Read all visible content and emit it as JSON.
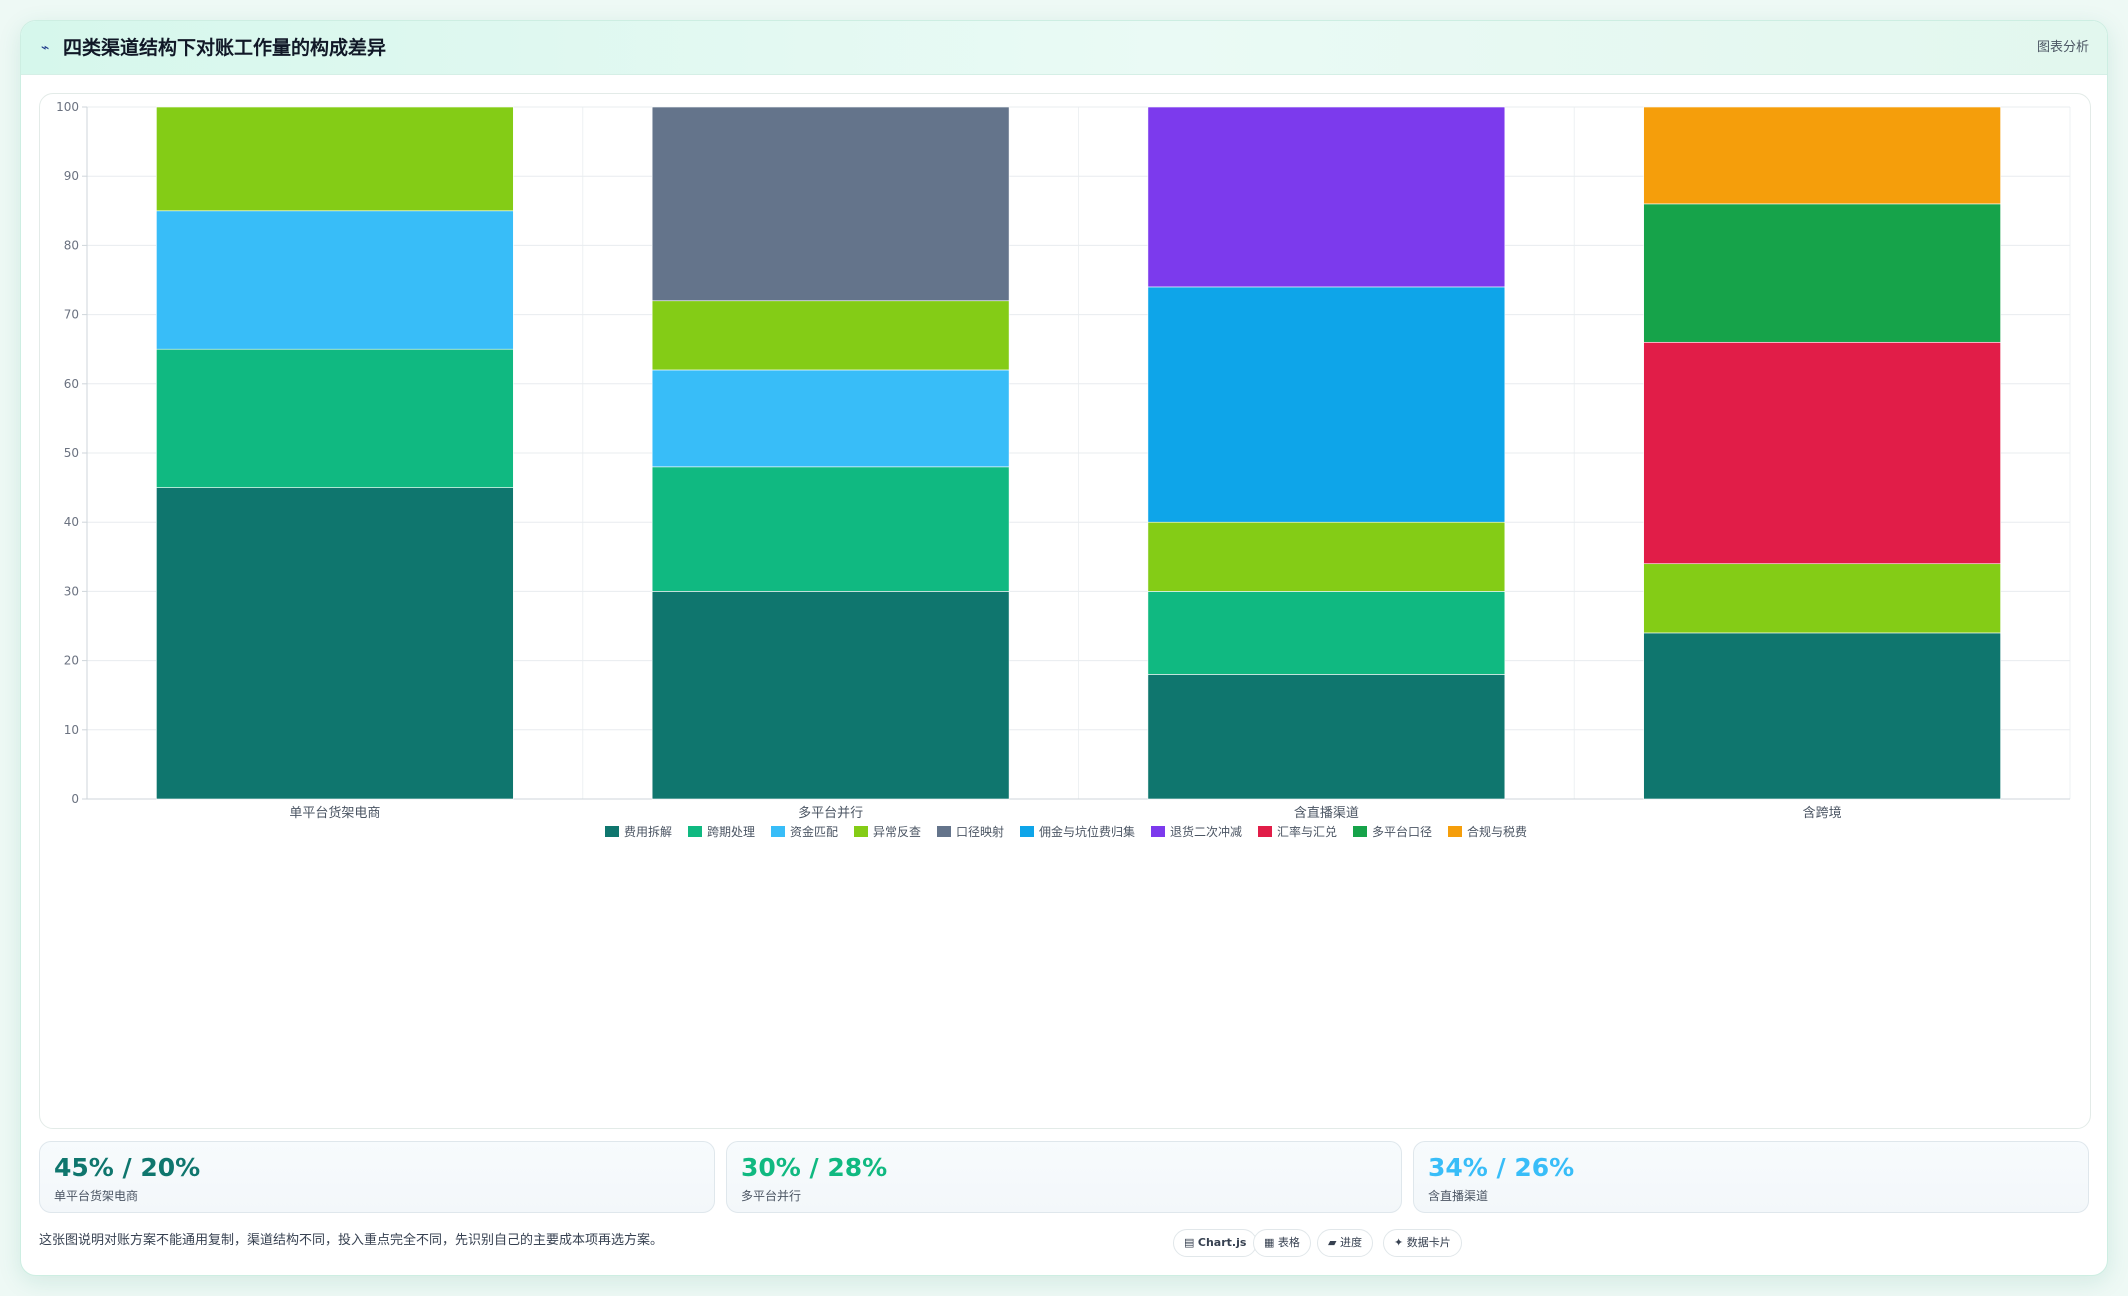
{
  "header": {
    "title": "四类渠道结构下对账工作量的构成差异",
    "icon": "trend-line-icon",
    "tag": "图表分析"
  },
  "chart_data": {
    "type": "bar",
    "stacked": true,
    "title": "",
    "xlabel": "",
    "ylabel": "",
    "ylim": [
      0,
      100
    ],
    "yticks": [
      0,
      10,
      20,
      30,
      40,
      50,
      60,
      70,
      80,
      90,
      100
    ],
    "grid": true,
    "legend_position": "bottom",
    "categories": [
      "单平台货架电商",
      "多平台并行",
      "含直播渠道",
      "含跨境"
    ],
    "series": [
      {
        "name": "费用拆解",
        "color": "#0f766e",
        "values": [
          45,
          30,
          18,
          24
        ]
      },
      {
        "name": "跨期处理",
        "color": "#10b981",
        "values": [
          20,
          18,
          12,
          0
        ]
      },
      {
        "name": "资金匹配",
        "color": "#38bdf8",
        "values": [
          20,
          14,
          0,
          0
        ]
      },
      {
        "name": "异常反查",
        "color": "#84cc16",
        "values": [
          15,
          10,
          10,
          10
        ]
      },
      {
        "name": "口径映射",
        "color": "#64748b",
        "values": [
          0,
          28,
          0,
          0
        ]
      },
      {
        "name": "佣金与坑位费归集",
        "color": "#0ea5e9",
        "values": [
          0,
          0,
          34,
          0
        ]
      },
      {
        "name": "退货二次冲减",
        "color": "#7c3aed",
        "values": [
          0,
          0,
          26,
          0
        ]
      },
      {
        "name": "汇率与汇兑",
        "color": "#e11d48",
        "values": [
          0,
          0,
          0,
          32
        ]
      },
      {
        "name": "多平台口径",
        "color": "#16a34a",
        "values": [
          0,
          0,
          0,
          20
        ]
      },
      {
        "name": "合规与税费",
        "color": "#f59e0b",
        "values": [
          0,
          0,
          0,
          14
        ]
      }
    ]
  },
  "stats": [
    {
      "value": "45% / 20%",
      "label": "单平台货架电商",
      "color": "#0f766e"
    },
    {
      "value": "30% / 28%",
      "label": "多平台并行",
      "color": "#10b981"
    },
    {
      "value": "34% / 26%",
      "label": "含直播渠道",
      "color": "#38bdf8"
    }
  ],
  "footer": {
    "note": "这张图说明对账方案不能通用复制，渠道结构不同，投入重点完全不同，先识别自己的主要成本项再选方案。",
    "pills": [
      {
        "icon": "chart-icon",
        "glyph": "▤",
        "label": "Chart.js",
        "bold": true
      },
      {
        "icon": "table-icon",
        "glyph": "▦",
        "label": "表格",
        "bold": false
      },
      {
        "icon": "progress-icon",
        "glyph": "▰",
        "label": "进度",
        "bold": false
      },
      {
        "icon": "sparkle-icon",
        "glyph": "✦",
        "label": "数据卡片",
        "bold": false
      }
    ]
  }
}
